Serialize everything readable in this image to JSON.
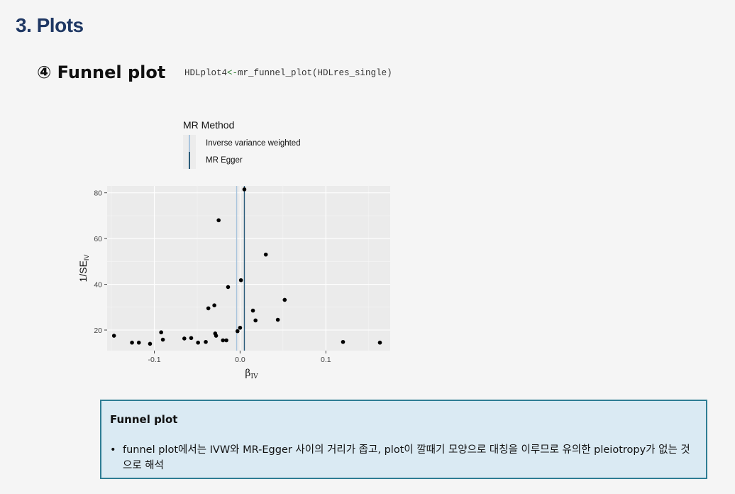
{
  "slide": {
    "section_title": "3. Plots",
    "sub_title": "④ Funnel plot",
    "code": {
      "var": "HDLplot4",
      "assign": "<-",
      "call": "mr_funnel_plot(HDLres_single)"
    }
  },
  "note": {
    "title": "Funnel plot",
    "bullet_marker": "•",
    "bullet_text": "funnel plot에서는 IVW와 MR-Egger 사이의 거리가 좁고, plot이 깔때기 모양으로 대칭을 이루므로 유의한 pleiotropy가 없는 것으로 해석"
  },
  "colors": {
    "title": "#1f3864",
    "ivw_line": "#a9c4dc",
    "egger_line": "#2b5c7a",
    "panel_bg": "#ebebeb",
    "note_border": "#2e7d94",
    "note_bg": "#daeaf3"
  },
  "chart_data": {
    "type": "scatter",
    "title": "",
    "xlabel": "β",
    "xlabel_sub": "IV",
    "ylabel": "1/SE",
    "ylabel_sub": "IV",
    "xlim": [
      -0.155,
      0.175
    ],
    "ylim": [
      11,
      83
    ],
    "x_ticks": [
      -0.1,
      0.0,
      0.1
    ],
    "x_tick_labels": [
      "-0.1",
      "0.0",
      "0.1"
    ],
    "y_ticks": [
      20,
      40,
      60,
      80
    ],
    "y_tick_labels": [
      "20",
      "40",
      "60",
      "80"
    ],
    "grid": true,
    "legend": {
      "title": "MR Method",
      "position": "top",
      "entries": [
        "Inverse variance weighted",
        "MR Egger"
      ]
    },
    "reference_lines": [
      {
        "name": "Inverse variance weighted",
        "x": -0.004
      },
      {
        "name": "MR Egger",
        "x": 0.005
      }
    ],
    "points": [
      {
        "x": -0.147,
        "y": 17.5
      },
      {
        "x": -0.126,
        "y": 14.5
      },
      {
        "x": -0.118,
        "y": 14.5
      },
      {
        "x": -0.105,
        "y": 14.0
      },
      {
        "x": -0.092,
        "y": 19.0
      },
      {
        "x": -0.09,
        "y": 15.8
      },
      {
        "x": -0.065,
        "y": 16.3
      },
      {
        "x": -0.057,
        "y": 16.5
      },
      {
        "x": -0.049,
        "y": 14.5
      },
      {
        "x": -0.04,
        "y": 14.8
      },
      {
        "x": -0.037,
        "y": 29.5
      },
      {
        "x": -0.03,
        "y": 30.8
      },
      {
        "x": -0.029,
        "y": 18.5
      },
      {
        "x": -0.028,
        "y": 17.5
      },
      {
        "x": -0.025,
        "y": 68.0
      },
      {
        "x": -0.02,
        "y": 15.5
      },
      {
        "x": -0.016,
        "y": 15.5
      },
      {
        "x": -0.014,
        "y": 38.8
      },
      {
        "x": -0.003,
        "y": 19.5
      },
      {
        "x": 0.0,
        "y": 21.0
      },
      {
        "x": 0.001,
        "y": 41.8
      },
      {
        "x": 0.005,
        "y": 81.5
      },
      {
        "x": 0.015,
        "y": 28.5
      },
      {
        "x": 0.018,
        "y": 24.2
      },
      {
        "x": 0.03,
        "y": 53.0
      },
      {
        "x": 0.044,
        "y": 24.5
      },
      {
        "x": 0.052,
        "y": 33.2
      },
      {
        "x": 0.12,
        "y": 14.8
      },
      {
        "x": 0.163,
        "y": 14.5
      }
    ]
  }
}
